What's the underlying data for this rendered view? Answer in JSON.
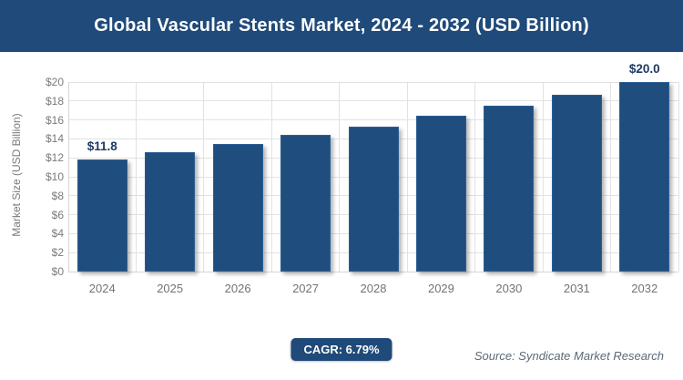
{
  "header": {
    "title": "Global Vascular Stents Market, 2024 - 2032 (USD Billion)"
  },
  "chart_data": {
    "type": "bar",
    "title": "Global Vascular Stents Market, 2024 - 2032 (USD Billion)",
    "categories": [
      "2024",
      "2025",
      "2026",
      "2027",
      "2028",
      "2029",
      "2030",
      "2031",
      "2032"
    ],
    "values": [
      11.8,
      12.6,
      13.5,
      14.4,
      15.3,
      16.4,
      17.5,
      18.7,
      20.0
    ],
    "point_labels": [
      {
        "category": "2024",
        "text": "$11.8"
      },
      {
        "category": "2032",
        "text": "$20.0"
      }
    ],
    "xlabel": "",
    "ylabel": "Market Size (USD Billion)",
    "ylim": [
      0,
      20
    ],
    "ytick_step": 2,
    "ytick_labels": [
      "$0",
      "$2",
      "$4",
      "$6",
      "$8",
      "$10",
      "$12",
      "$14",
      "$16",
      "$18",
      "$20"
    ],
    "grid": "horizontal-and-vertical",
    "legend": "none",
    "bar_color": "#1F4E7E"
  },
  "footer": {
    "cagr_badge": "CAGR: 6.79%",
    "source": "Source: Syndicate Market Research"
  },
  "colors": {
    "banner_bg": "#1F4A7A",
    "bar_fill": "#1F4E7E",
    "badge_bg": "#1F4A7A",
    "axis_text": "#7A7A7A",
    "data_label_text": "#1F3864",
    "source_text": "#5A6978",
    "gridline": "#E2E2E2"
  }
}
